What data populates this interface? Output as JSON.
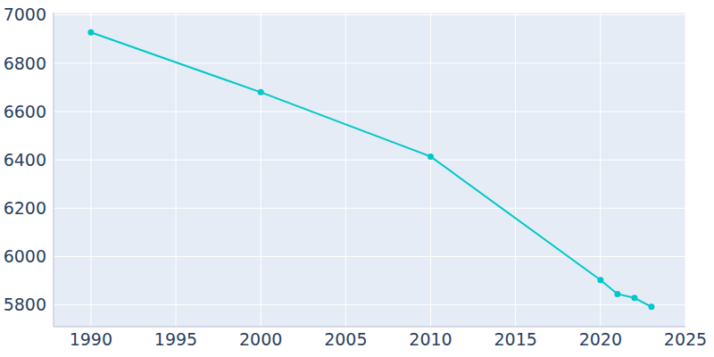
{
  "chart_data": {
    "type": "line",
    "x": [
      1990,
      2000,
      2010,
      2020,
      2021,
      2022,
      2023
    ],
    "values": [
      6928,
      6680,
      6414,
      5903,
      5845,
      5829,
      5792
    ],
    "color": "#00c8c8",
    "marker": "circle",
    "xlim": [
      1987.8,
      2025
    ],
    "xticks": [
      1990,
      1995,
      2000,
      2005,
      2010,
      2015,
      2020,
      2025
    ],
    "ylim": [
      5710,
      7010
    ],
    "yticks": [
      5800,
      6000,
      6200,
      6400,
      6600,
      6800,
      7000
    ],
    "grid": true
  }
}
